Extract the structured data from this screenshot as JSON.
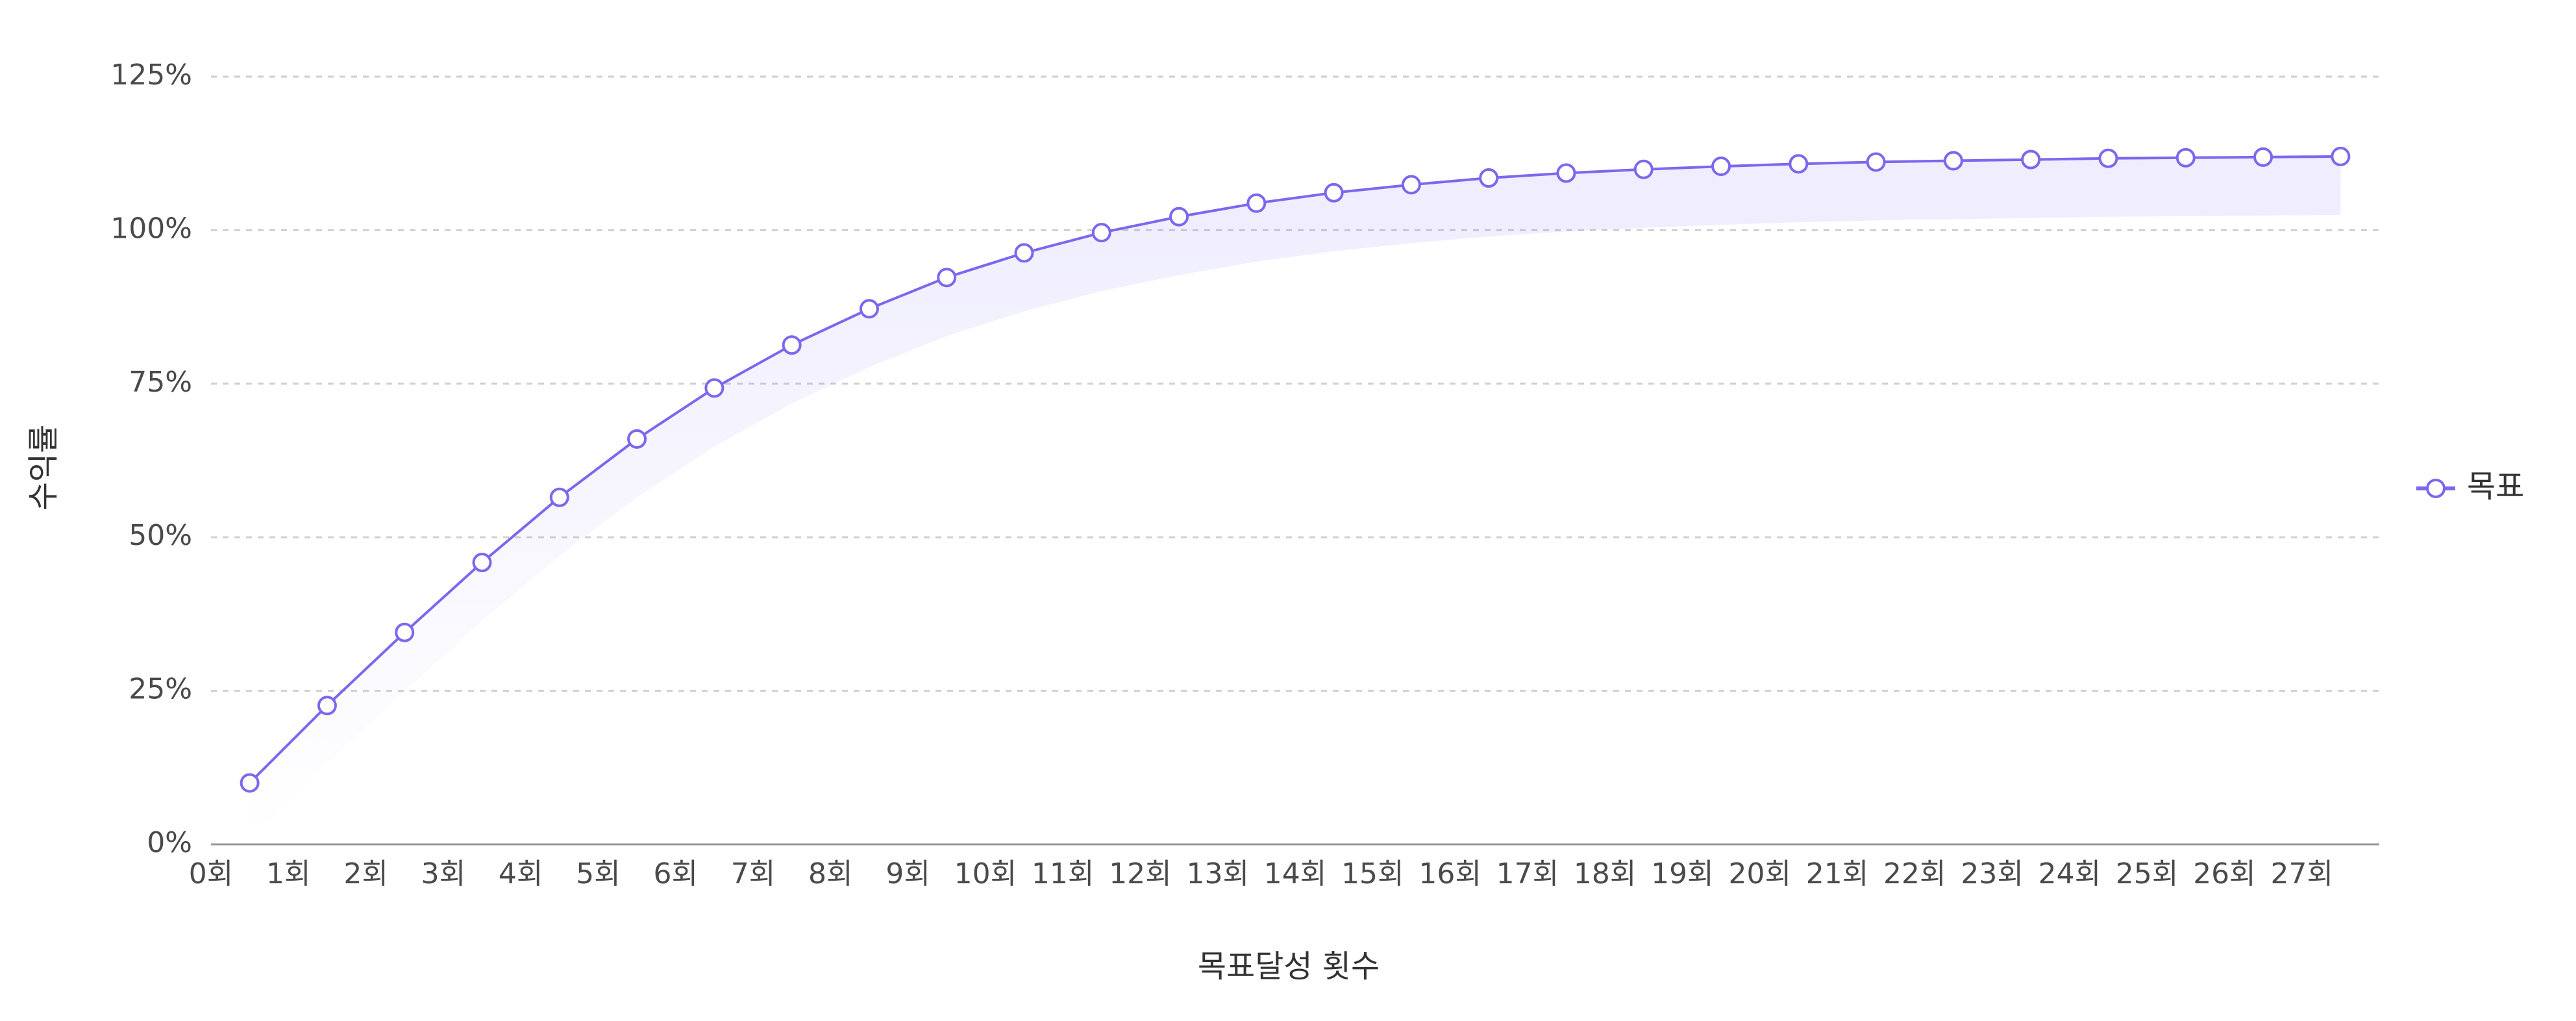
{
  "chart_data": {
    "type": "line",
    "categories": [
      "0회",
      "1회",
      "2회",
      "3회",
      "4회",
      "5회",
      "6회",
      "7회",
      "8회",
      "9회",
      "10회",
      "11회",
      "12회",
      "13회",
      "14회",
      "15회",
      "16회",
      "17회",
      "18회",
      "19회",
      "20회",
      "21회",
      "22회",
      "23회",
      "24회",
      "25회",
      "26회",
      "27회"
    ],
    "series": [
      {
        "name": "목표",
        "values": [
          10,
          22.6,
          34.5,
          45.9,
          56.5,
          66.0,
          74.3,
          81.3,
          87.2,
          92.3,
          96.3,
          99.6,
          102.2,
          104.4,
          106.1,
          107.4,
          108.5,
          109.3,
          109.9,
          110.4,
          110.8,
          111.1,
          111.3,
          111.5,
          111.7,
          111.8,
          111.9,
          112.0
        ],
        "color": "#7b68ee"
      }
    ],
    "xlabel": "목표달성 횟수",
    "ylabel": "수익률",
    "ylim": [
      0,
      125
    ],
    "yticks": [
      0,
      25,
      50,
      75,
      100,
      125
    ],
    "ytick_labels": [
      "0%",
      "25%",
      "50%",
      "75%",
      "100%",
      "125%"
    ],
    "grid": true,
    "legend_position": "right",
    "colors": {
      "line": "#7b68ee",
      "marker_fill": "#ffffff",
      "area": "#8b7cf6",
      "grid": "#cfcfcf",
      "axis": "#999999"
    }
  }
}
